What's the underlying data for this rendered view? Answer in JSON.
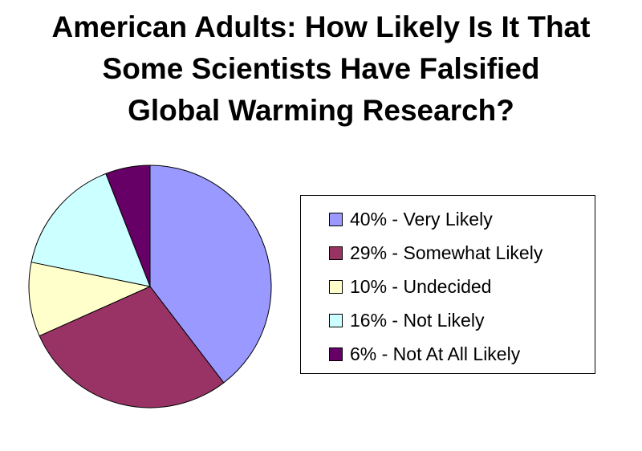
{
  "chart_data": {
    "type": "pie",
    "title_lines": [
      "American Adults: How Likely Is It That",
      "Some Scientists Have Falsified",
      "Global Warming Research?"
    ],
    "categories": [
      "Very Likely",
      "Somewhat Likely",
      "Undecided",
      "Not Likely",
      "Not At All Likely"
    ],
    "values": [
      40,
      29,
      10,
      16,
      6
    ],
    "colors": [
      "#9999ff",
      "#993366",
      "#ffffcc",
      "#ccffff",
      "#660066"
    ],
    "legend_labels": [
      "40% - Very Likely",
      "29% - Somewhat Likely",
      "10% - Undecided",
      "16% - Not Likely",
      "6% - Not At All Likely"
    ],
    "legend_position": "right",
    "start_angle": "12 o'clock",
    "direction": "clockwise"
  }
}
